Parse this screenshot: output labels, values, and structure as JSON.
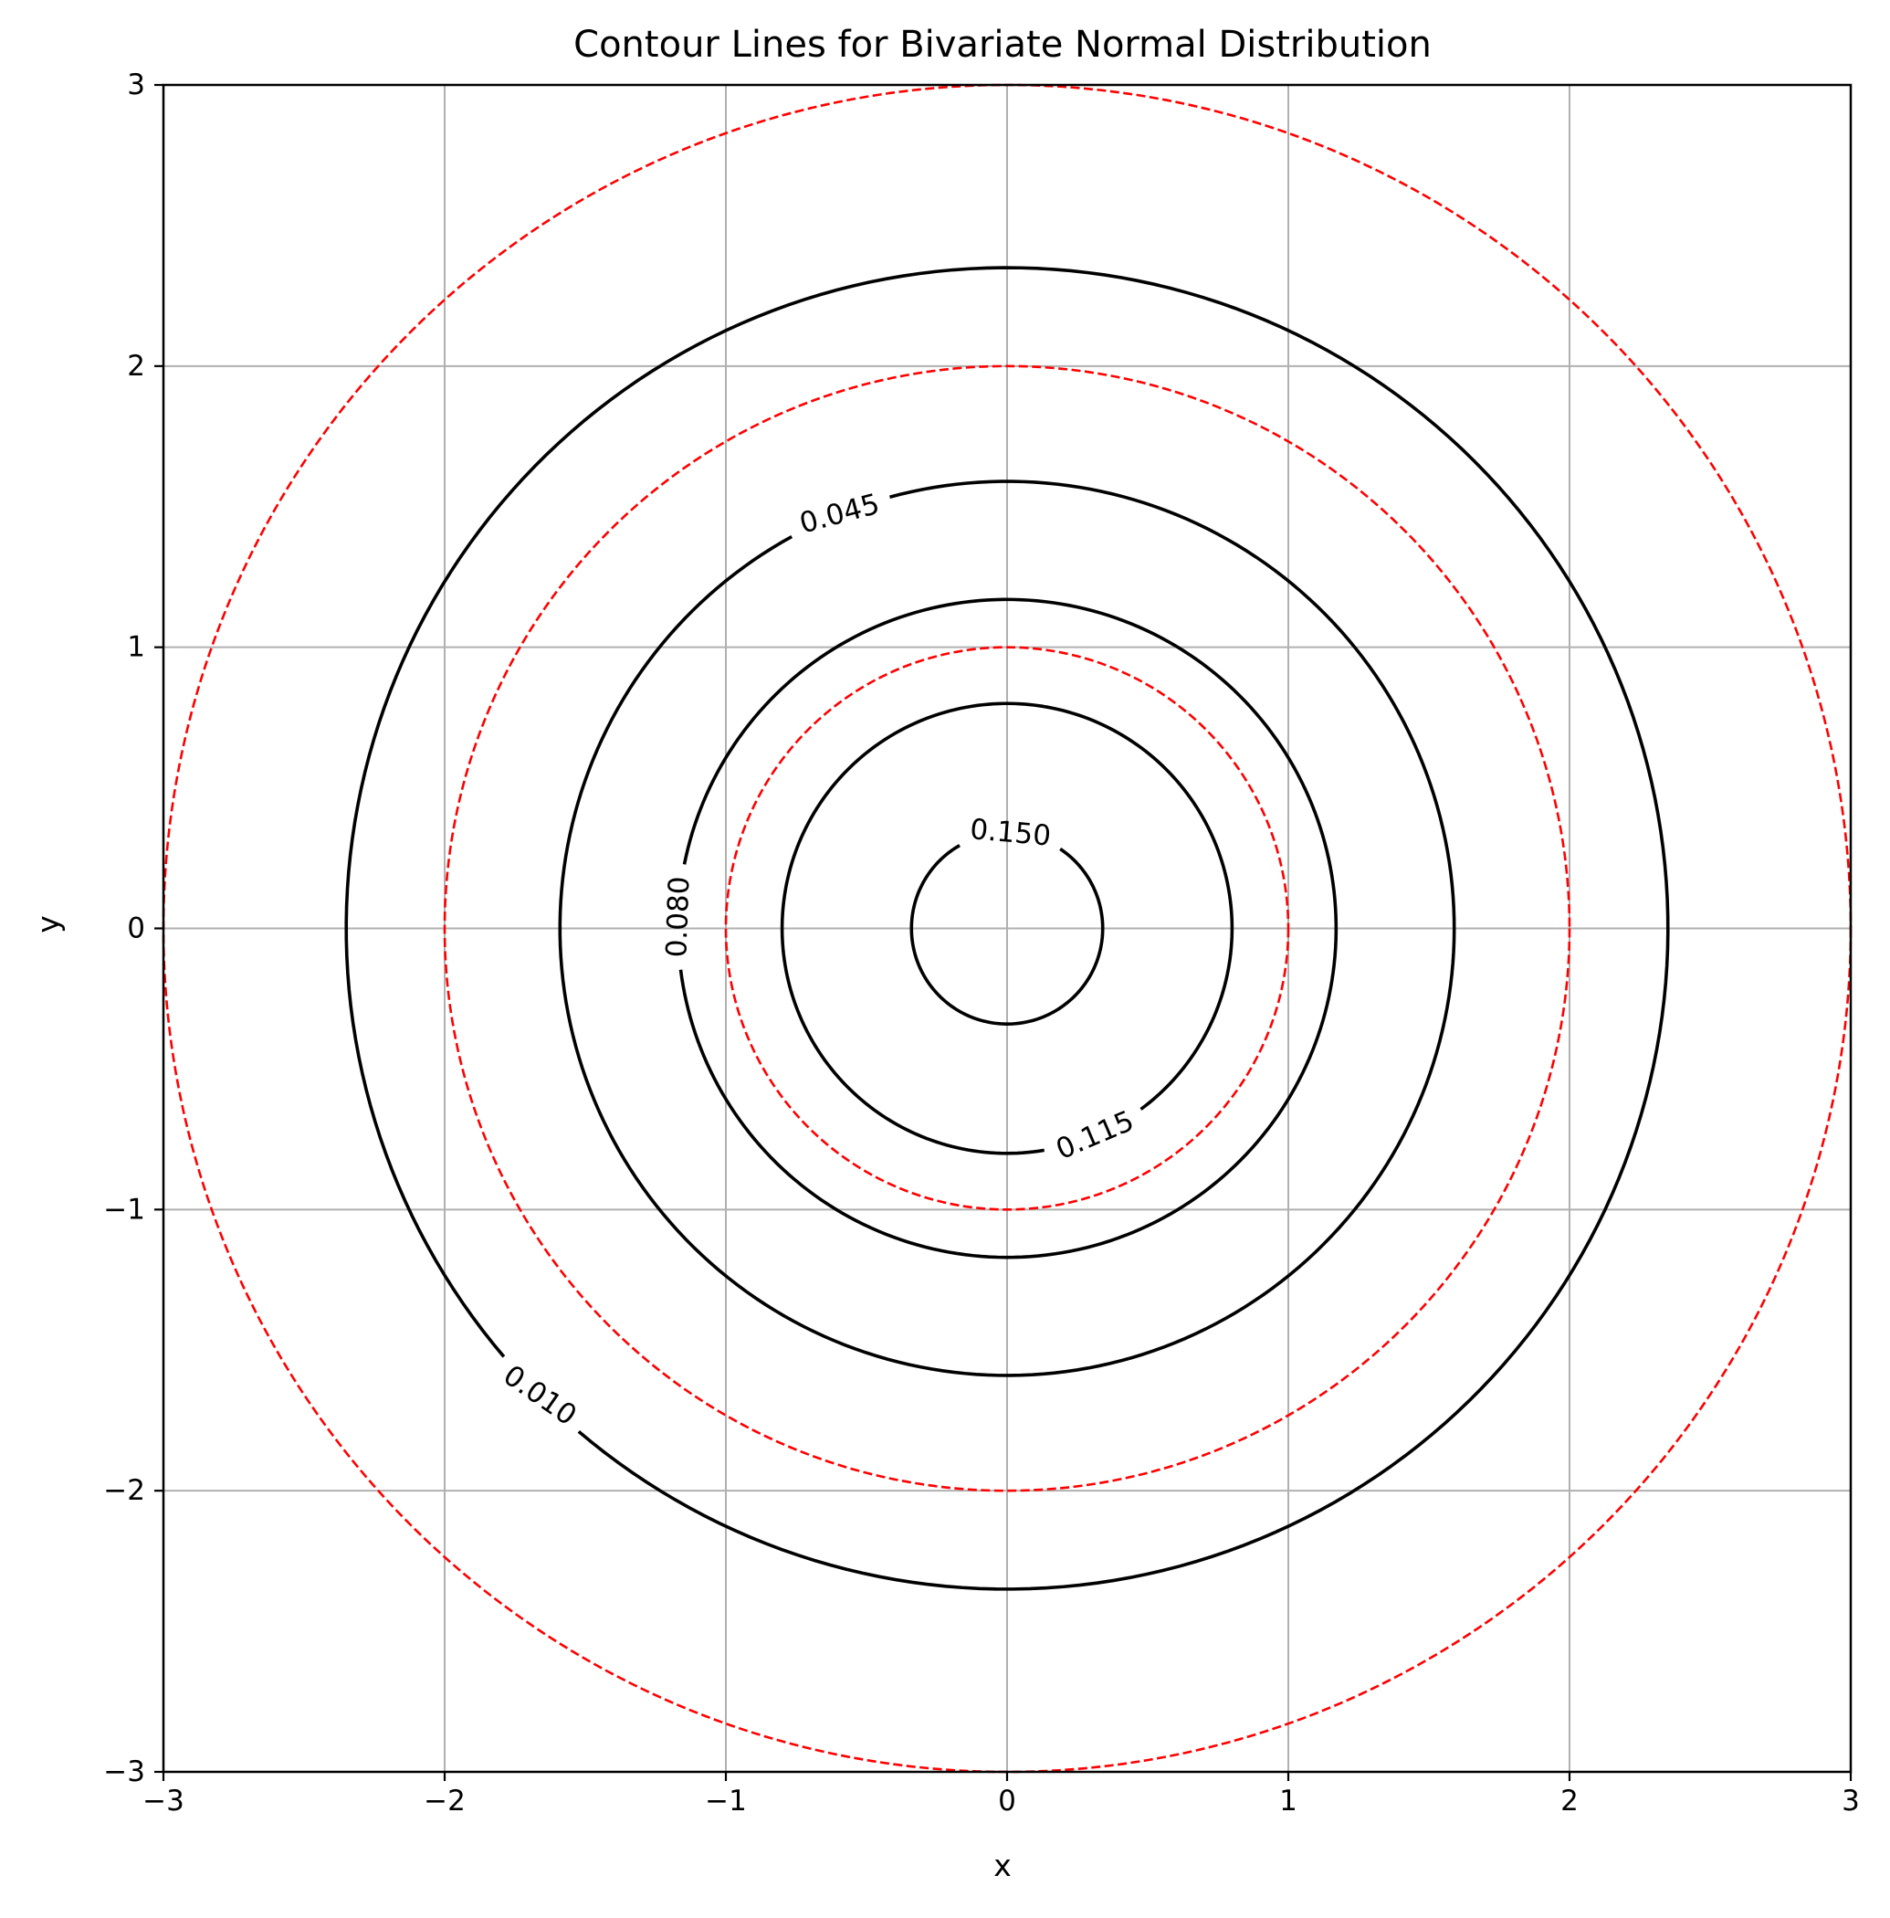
{
  "chart_data": {
    "type": "contour",
    "title": "Contour Lines for Bivariate Normal Distribution",
    "xlabel": "x",
    "ylabel": "y",
    "xlim": [
      -3,
      3
    ],
    "ylim": [
      -3,
      3
    ],
    "grid": true,
    "x_ticks": [
      -3,
      -2,
      -1,
      0,
      1,
      2,
      3
    ],
    "y_ticks": [
      -3,
      -2,
      -1,
      0,
      1,
      2,
      3
    ],
    "x_tick_labels": [
      "−3",
      "−2",
      "−1",
      "0",
      "1",
      "2",
      "3"
    ],
    "y_tick_labels": [
      "−3",
      "−2",
      "−1",
      "0",
      "1",
      "2",
      "3"
    ],
    "contour_levels": [
      {
        "level": 0.01,
        "label": "0.010",
        "radius": 2.35,
        "label_angle_deg": 225,
        "label_rotation": 35
      },
      {
        "level": 0.045,
        "label": "0.045",
        "radius": 1.59,
        "label_angle_deg": 112,
        "label_rotation": -15
      },
      {
        "level": 0.08,
        "label": "0.080",
        "radius": 1.17,
        "label_angle_deg": 178,
        "label_rotation": -88
      },
      {
        "level": 0.115,
        "label": "0.115",
        "radius": 0.8,
        "label_angle_deg": 293,
        "label_rotation": -23
      },
      {
        "level": 0.15,
        "label": "0.150",
        "radius": 0.34,
        "label_angle_deg": 88,
        "label_rotation": 5
      }
    ],
    "reference_circles": {
      "style": "dashed",
      "color": "#ff0000",
      "radii": [
        1,
        2,
        3
      ]
    },
    "contour_color": "#000000",
    "grid_color": "#b0b0b0"
  }
}
